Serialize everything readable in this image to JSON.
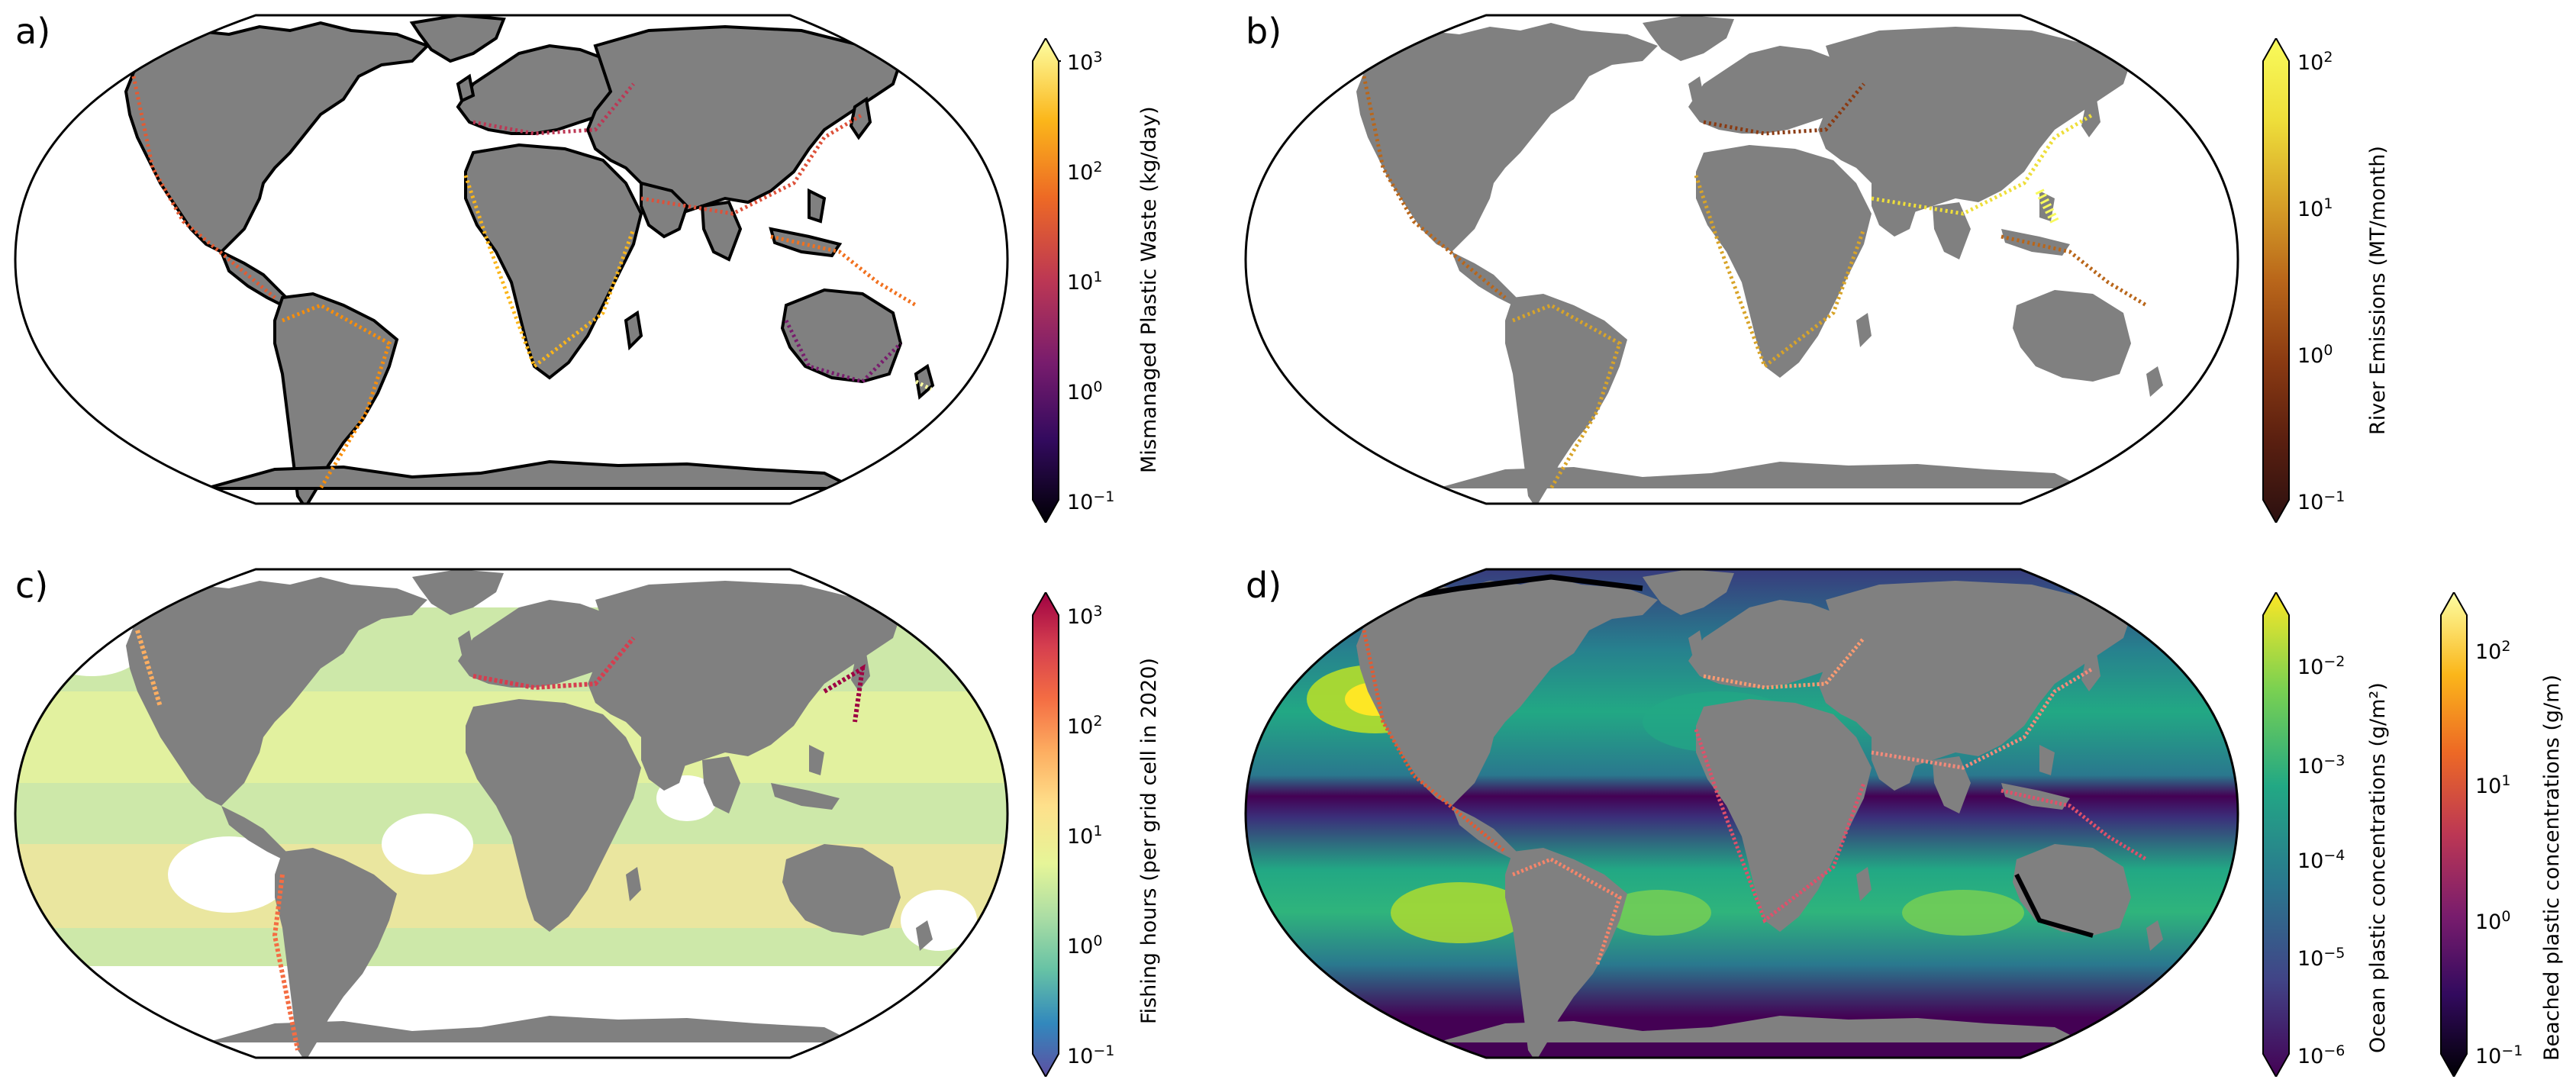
{
  "panels": [
    {
      "label": "a)",
      "colorbar": {
        "title": "Mismanaged Plastic Waste (kg/day)",
        "colors": [
          "#000004",
          "#320a5e",
          "#781c6d",
          "#bc3754",
          "#ed6925",
          "#fbb61a",
          "#fcffa4"
        ],
        "ticks": [
          "10",
          "10",
          "10",
          "10",
          "10"
        ],
        "exponents": [
          "−1",
          "0",
          "1",
          "2",
          "3"
        ]
      }
    },
    {
      "label": "b)",
      "colorbar": {
        "title": "River Emissions (MT/month)",
        "colors": [
          "#2b1010",
          "#5a1f10",
          "#8a3a12",
          "#b9661a",
          "#d8a429",
          "#eede3a",
          "#f9fb5c"
        ],
        "ticks": [
          "10",
          "10",
          "10",
          "10"
        ],
        "exponents": [
          "−1",
          "0",
          "1",
          "2"
        ]
      }
    },
    {
      "label": "c)",
      "colorbar": {
        "title": "Fishing hours (per grid cell in 2020)",
        "colors": [
          "#5e4fa2",
          "#3288bd",
          "#66c2a5",
          "#abdda4",
          "#e6f598",
          "#fee08b",
          "#fdae61",
          "#f46d43",
          "#d53e4f",
          "#9e0142"
        ],
        "ticks": [
          "10",
          "10",
          "10",
          "10",
          "10"
        ],
        "exponents": [
          "−1",
          "0",
          "1",
          "2",
          "3"
        ]
      }
    },
    {
      "label": "d)",
      "colorbar": {
        "title": "Ocean plastic concentrations (g/m²)",
        "colors": [
          "#440154",
          "#414487",
          "#2a788e",
          "#22a884",
          "#7ad151",
          "#fde725"
        ],
        "ticks": [
          "10",
          "10",
          "10",
          "10",
          "10"
        ],
        "exponents": [
          "−6",
          "−5",
          "−4",
          "−3",
          "−2"
        ]
      },
      "colorbar2": {
        "title": "Beached plastic concentrations (g/m)",
        "colors": [
          "#000004",
          "#320a5e",
          "#781c6d",
          "#bc3754",
          "#ed6925",
          "#fbb61a",
          "#fcffa4"
        ],
        "ticks": [
          "10",
          "10",
          "10",
          "10"
        ],
        "exponents": [
          "−1",
          "0",
          "1",
          "2"
        ]
      }
    }
  ],
  "colors": {
    "land": "#808080",
    "outline": "#000000"
  }
}
